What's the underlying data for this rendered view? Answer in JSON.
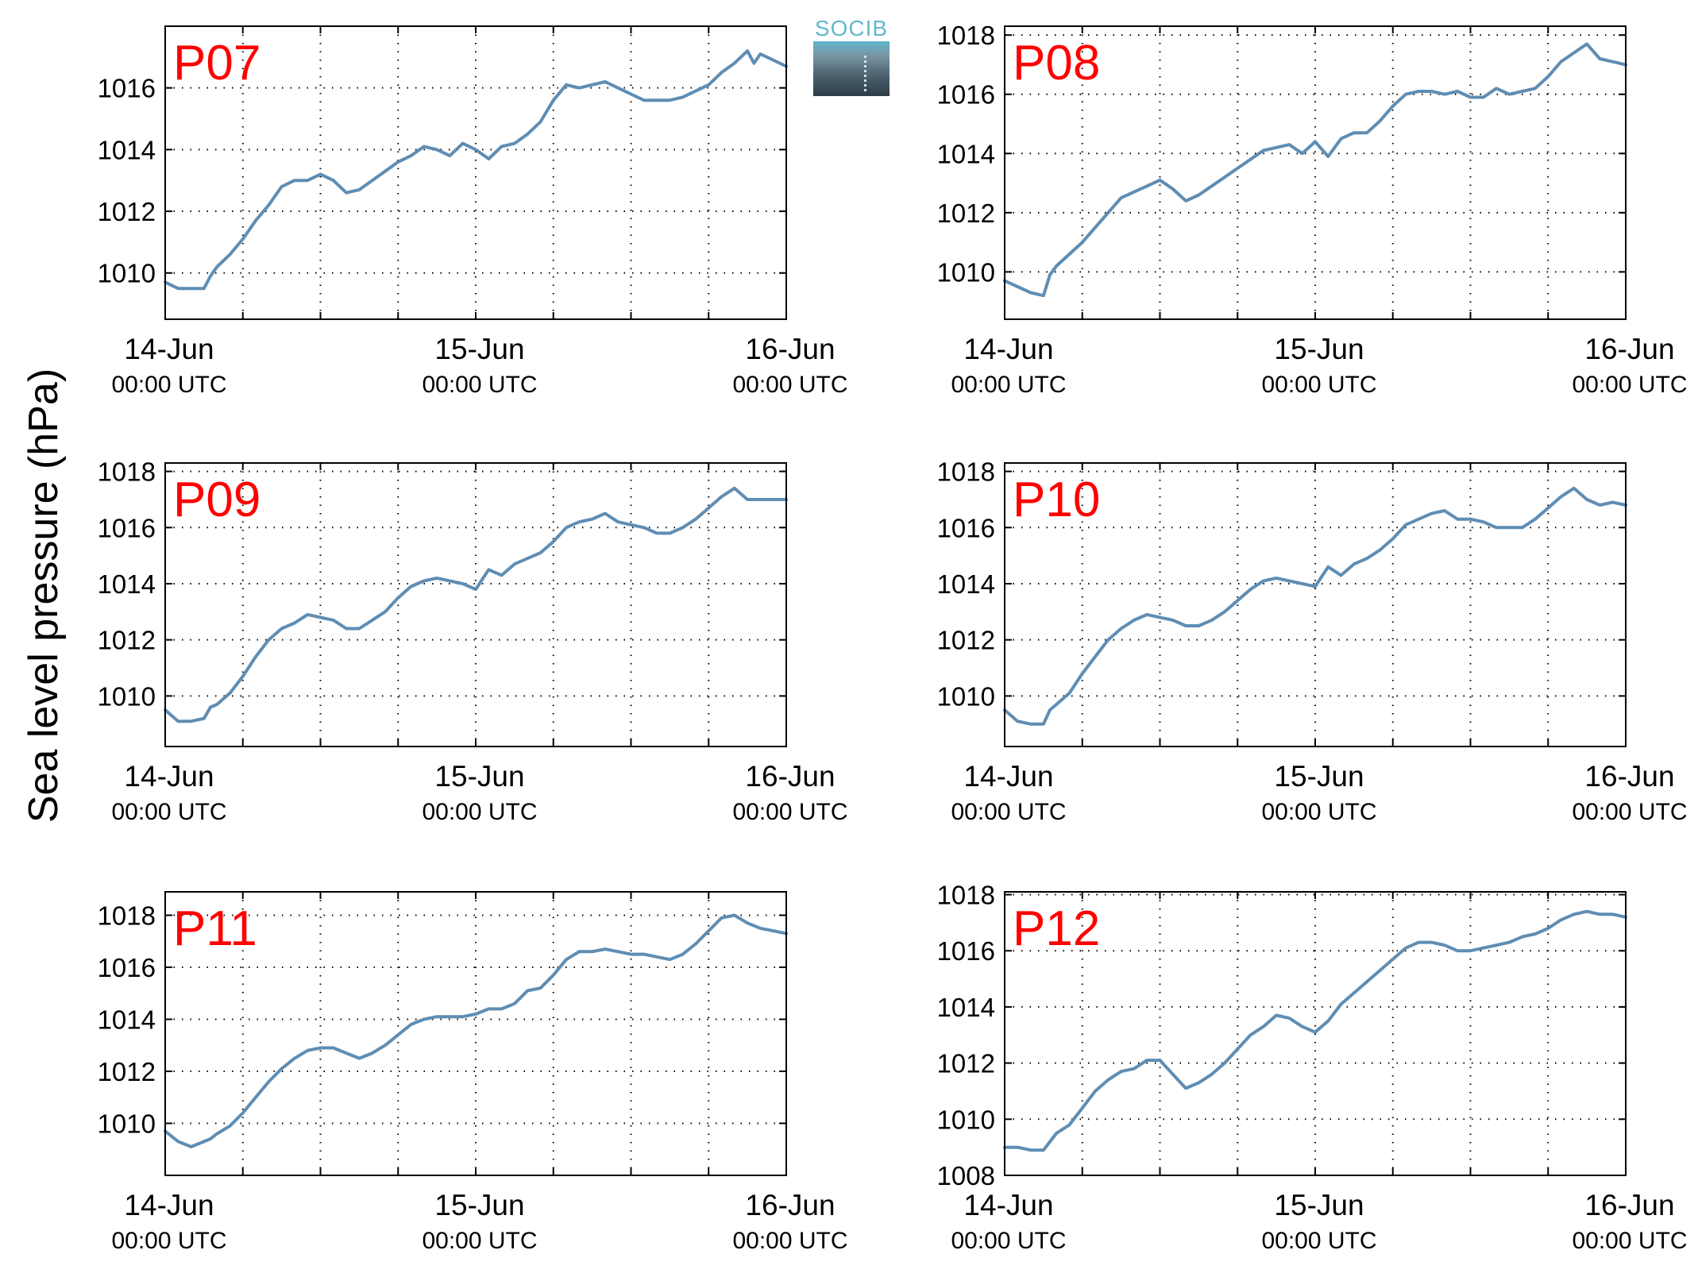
{
  "figure": {
    "ylabel": "Sea level pressure (hPa)",
    "logo_text": "SOCIB",
    "line_color": "#5f8db3",
    "panel_label_color": "#ff0000"
  },
  "chart_data": [
    {
      "type": "line",
      "label": "P07",
      "xlim": [
        0,
        48
      ],
      "ylim": [
        1008.5,
        1018.0
      ],
      "yticks": [
        1010,
        1012,
        1014,
        1016
      ],
      "xticks": [
        {
          "day": "14-Jun",
          "time": "00:00 UTC"
        },
        {
          "day": "15-Jun",
          "time": "00:00 UTC"
        },
        {
          "day": "16-Jun",
          "time": "00:00 UTC"
        }
      ],
      "x": [
        0,
        1,
        2,
        3,
        3.5,
        4,
        5,
        6,
        7,
        8,
        9,
        10,
        11,
        12,
        13,
        14,
        15,
        16,
        17,
        18,
        19,
        20,
        21,
        22,
        23,
        24,
        25,
        26,
        27,
        28,
        29,
        30,
        31,
        32,
        33,
        34,
        35,
        36,
        37,
        38,
        39,
        40,
        41,
        42,
        43,
        44,
        45,
        45.5,
        46,
        47,
        48
      ],
      "y": [
        1009.7,
        1009.5,
        1009.5,
        1009.5,
        1009.9,
        1010.2,
        1010.6,
        1011.1,
        1011.7,
        1012.2,
        1012.8,
        1013.0,
        1013.0,
        1013.2,
        1013.0,
        1012.6,
        1012.7,
        1013.0,
        1013.3,
        1013.6,
        1013.8,
        1014.1,
        1014.0,
        1013.8,
        1014.2,
        1014.0,
        1013.7,
        1014.1,
        1014.2,
        1014.5,
        1014.9,
        1015.6,
        1016.1,
        1016.0,
        1016.1,
        1016.2,
        1016.0,
        1015.8,
        1015.6,
        1015.6,
        1015.6,
        1015.7,
        1015.9,
        1016.1,
        1016.5,
        1016.8,
        1017.2,
        1016.8,
        1017.1,
        1016.9,
        1016.7
      ]
    },
    {
      "type": "line",
      "label": "P08",
      "xlim": [
        0,
        48
      ],
      "ylim": [
        1008.4,
        1018.3
      ],
      "yticks": [
        1010,
        1012,
        1014,
        1016,
        1018
      ],
      "xticks": [
        {
          "day": "14-Jun",
          "time": "00:00 UTC"
        },
        {
          "day": "15-Jun",
          "time": "00:00 UTC"
        },
        {
          "day": "16-Jun",
          "time": "00:00 UTC"
        }
      ],
      "x": [
        0,
        1,
        2,
        3,
        3.5,
        4,
        5,
        6,
        7,
        8,
        9,
        10,
        11,
        12,
        13,
        14,
        15,
        16,
        17,
        18,
        19,
        20,
        21,
        22,
        23,
        24,
        25,
        26,
        27,
        28,
        29,
        30,
        31,
        32,
        33,
        34,
        35,
        36,
        37,
        38,
        39,
        40,
        41,
        42,
        43,
        44,
        45,
        46,
        47,
        48
      ],
      "y": [
        1009.7,
        1009.5,
        1009.3,
        1009.2,
        1009.9,
        1010.2,
        1010.6,
        1011.0,
        1011.5,
        1012.0,
        1012.5,
        1012.7,
        1012.9,
        1013.1,
        1012.8,
        1012.4,
        1012.6,
        1012.9,
        1013.2,
        1013.5,
        1013.8,
        1014.1,
        1014.2,
        1014.3,
        1014.0,
        1014.4,
        1013.9,
        1014.5,
        1014.7,
        1014.7,
        1015.1,
        1015.6,
        1016.0,
        1016.1,
        1016.1,
        1016.0,
        1016.1,
        1015.9,
        1015.9,
        1016.2,
        1016.0,
        1016.1,
        1016.2,
        1016.6,
        1017.1,
        1017.4,
        1017.7,
        1017.2,
        1017.1,
        1017.0
      ]
    },
    {
      "type": "line",
      "label": "P09",
      "xlim": [
        0,
        48
      ],
      "ylim": [
        1008.2,
        1018.3
      ],
      "yticks": [
        1010,
        1012,
        1014,
        1016,
        1018
      ],
      "xticks": [
        {
          "day": "14-Jun",
          "time": "00:00 UTC"
        },
        {
          "day": "15-Jun",
          "time": "00:00 UTC"
        },
        {
          "day": "16-Jun",
          "time": "00:00 UTC"
        }
      ],
      "x": [
        0,
        1,
        2,
        3,
        3.5,
        4,
        5,
        6,
        7,
        8,
        9,
        10,
        11,
        12,
        13,
        14,
        15,
        16,
        17,
        18,
        19,
        20,
        21,
        22,
        23,
        24,
        25,
        26,
        27,
        28,
        29,
        30,
        31,
        32,
        33,
        34,
        35,
        36,
        37,
        38,
        39,
        40,
        41,
        42,
        43,
        44,
        45,
        46,
        47,
        48
      ],
      "y": [
        1009.5,
        1009.1,
        1009.1,
        1009.2,
        1009.6,
        1009.7,
        1010.1,
        1010.7,
        1011.4,
        1012.0,
        1012.4,
        1012.6,
        1012.9,
        1012.8,
        1012.7,
        1012.4,
        1012.4,
        1012.7,
        1013.0,
        1013.5,
        1013.9,
        1014.1,
        1014.2,
        1014.1,
        1014.0,
        1013.8,
        1014.5,
        1014.3,
        1014.7,
        1014.9,
        1015.1,
        1015.5,
        1016.0,
        1016.2,
        1016.3,
        1016.5,
        1016.2,
        1016.1,
        1016.0,
        1015.8,
        1015.8,
        1016.0,
        1016.3,
        1016.7,
        1017.1,
        1017.4,
        1017.0,
        1017.0,
        1017.0,
        1017.0
      ]
    },
    {
      "type": "line",
      "label": "P10",
      "xlim": [
        0,
        48
      ],
      "ylim": [
        1008.2,
        1018.3
      ],
      "yticks": [
        1010,
        1012,
        1014,
        1016,
        1018
      ],
      "xticks": [
        {
          "day": "14-Jun",
          "time": "00:00 UTC"
        },
        {
          "day": "15-Jun",
          "time": "00:00 UTC"
        },
        {
          "day": "16-Jun",
          "time": "00:00 UTC"
        }
      ],
      "x": [
        0,
        1,
        2,
        3,
        3.5,
        4,
        5,
        6,
        7,
        8,
        9,
        10,
        11,
        12,
        13,
        14,
        15,
        16,
        17,
        18,
        19,
        20,
        21,
        22,
        23,
        24,
        25,
        26,
        27,
        28,
        29,
        30,
        31,
        32,
        33,
        34,
        35,
        36,
        37,
        38,
        39,
        40,
        41,
        42,
        43,
        44,
        45,
        46,
        47,
        48
      ],
      "y": [
        1009.5,
        1009.1,
        1009.0,
        1009.0,
        1009.5,
        1009.7,
        1010.1,
        1010.8,
        1011.4,
        1012.0,
        1012.4,
        1012.7,
        1012.9,
        1012.8,
        1012.7,
        1012.5,
        1012.5,
        1012.7,
        1013.0,
        1013.4,
        1013.8,
        1014.1,
        1014.2,
        1014.1,
        1014.0,
        1013.9,
        1014.6,
        1014.3,
        1014.7,
        1014.9,
        1015.2,
        1015.6,
        1016.1,
        1016.3,
        1016.5,
        1016.6,
        1016.3,
        1016.3,
        1016.2,
        1016.0,
        1016.0,
        1016.0,
        1016.3,
        1016.7,
        1017.1,
        1017.4,
        1017.0,
        1016.8,
        1016.9,
        1016.8
      ]
    },
    {
      "type": "line",
      "label": "P11",
      "xlim": [
        0,
        48
      ],
      "ylim": [
        1008.0,
        1018.9
      ],
      "yticks": [
        1010,
        1012,
        1014,
        1016,
        1018
      ],
      "xticks": [
        {
          "day": "14-Jun",
          "time": "00:00 UTC"
        },
        {
          "day": "15-Jun",
          "time": "00:00 UTC"
        },
        {
          "day": "16-Jun",
          "time": "00:00 UTC"
        }
      ],
      "x": [
        0,
        1,
        2,
        3,
        3.5,
        4,
        5,
        6,
        7,
        8,
        9,
        10,
        11,
        12,
        13,
        14,
        15,
        16,
        17,
        18,
        19,
        20,
        21,
        22,
        23,
        24,
        25,
        26,
        27,
        28,
        29,
        30,
        31,
        32,
        33,
        34,
        35,
        36,
        37,
        38,
        39,
        40,
        41,
        42,
        43,
        44,
        45,
        46,
        47,
        48
      ],
      "y": [
        1009.7,
        1009.3,
        1009.1,
        1009.3,
        1009.4,
        1009.6,
        1009.9,
        1010.4,
        1011.0,
        1011.6,
        1012.1,
        1012.5,
        1012.8,
        1012.9,
        1012.9,
        1012.7,
        1012.5,
        1012.7,
        1013.0,
        1013.4,
        1013.8,
        1014.0,
        1014.1,
        1014.1,
        1014.1,
        1014.2,
        1014.4,
        1014.4,
        1014.6,
        1015.1,
        1015.2,
        1015.7,
        1016.3,
        1016.6,
        1016.6,
        1016.7,
        1016.6,
        1016.5,
        1016.5,
        1016.4,
        1016.3,
        1016.5,
        1016.9,
        1017.4,
        1017.9,
        1018.0,
        1017.7,
        1017.5,
        1017.4,
        1017.3
      ]
    },
    {
      "type": "line",
      "label": "P12",
      "xlim": [
        0,
        48
      ],
      "ylim": [
        1008.0,
        1018.1
      ],
      "yticks": [
        1008,
        1010,
        1012,
        1014,
        1016,
        1018
      ],
      "xticks": [
        {
          "day": "14-Jun",
          "time": "00:00 UTC"
        },
        {
          "day": "15-Jun",
          "time": "00:00 UTC"
        },
        {
          "day": "16-Jun",
          "time": "00:00 UTC"
        }
      ],
      "x": [
        0,
        1,
        2,
        3,
        3.5,
        4,
        5,
        6,
        7,
        8,
        9,
        10,
        11,
        12,
        13,
        14,
        15,
        16,
        17,
        18,
        19,
        20,
        21,
        22,
        23,
        24,
        25,
        26,
        27,
        28,
        29,
        30,
        31,
        32,
        33,
        34,
        35,
        36,
        37,
        38,
        39,
        40,
        41,
        42,
        43,
        44,
        45,
        46,
        47,
        48
      ],
      "y": [
        1009.0,
        1009.0,
        1008.9,
        1008.9,
        1009.2,
        1009.5,
        1009.8,
        1010.4,
        1011.0,
        1011.4,
        1011.7,
        1011.8,
        1012.1,
        1012.1,
        1011.6,
        1011.1,
        1011.3,
        1011.6,
        1012.0,
        1012.5,
        1013.0,
        1013.3,
        1013.7,
        1013.6,
        1013.3,
        1013.1,
        1013.5,
        1014.1,
        1014.5,
        1014.9,
        1015.3,
        1015.7,
        1016.1,
        1016.3,
        1016.3,
        1016.2,
        1016.0,
        1016.0,
        1016.1,
        1016.2,
        1016.3,
        1016.5,
        1016.6,
        1016.8,
        1017.1,
        1017.3,
        1017.4,
        1017.3,
        1017.3,
        1017.2
      ]
    }
  ]
}
